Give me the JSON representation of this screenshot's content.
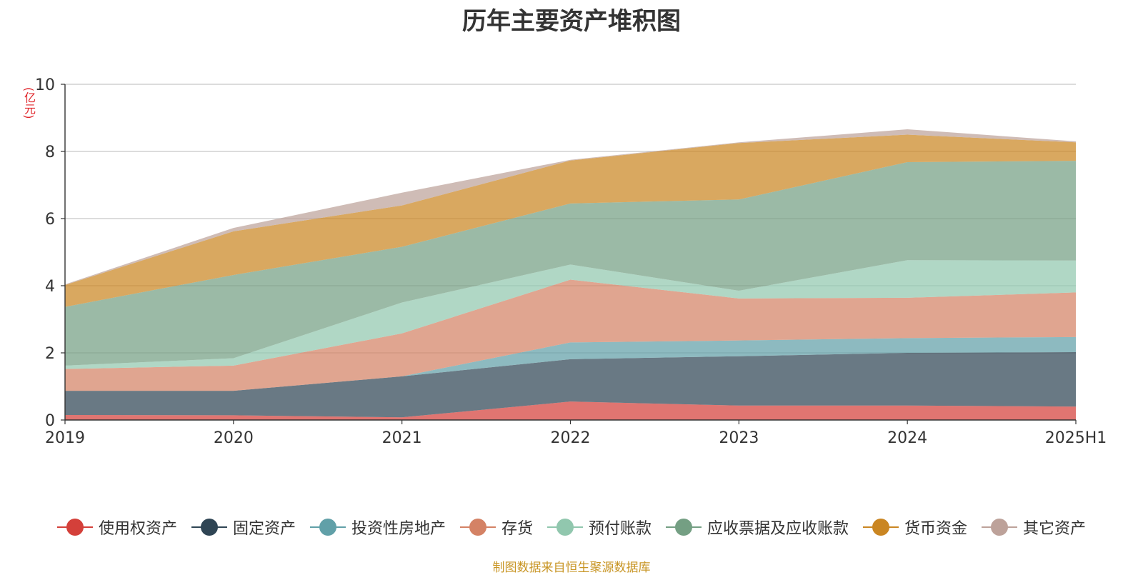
{
  "chart_data": {
    "type": "area",
    "stacked": true,
    "title": "历年主要资产堆积图",
    "unit_label": "(亿元)",
    "categories": [
      "2019",
      "2020",
      "2021",
      "2022",
      "2023",
      "2024",
      "2025H1"
    ],
    "ylim": [
      0,
      10
    ],
    "yticks": [
      0,
      2,
      4,
      6,
      8,
      10
    ],
    "grid": true,
    "legend_position": "bottom",
    "series": [
      {
        "name": "使用权资产",
        "color": "#d4403a",
        "values": [
          0.15,
          0.14,
          0.08,
          0.55,
          0.43,
          0.43,
          0.4
        ]
      },
      {
        "name": "固定资产",
        "color": "#2f4554",
        "values": [
          0.72,
          0.73,
          1.22,
          1.26,
          1.47,
          1.57,
          1.62
        ]
      },
      {
        "name": "投资性房地产",
        "color": "#61a0a8",
        "values": [
          0.0,
          0.0,
          0.0,
          0.5,
          0.47,
          0.44,
          0.45
        ]
      },
      {
        "name": "存货",
        "color": "#d48265",
        "values": [
          0.65,
          0.75,
          1.28,
          1.87,
          1.25,
          1.2,
          1.33
        ]
      },
      {
        "name": "预付账款",
        "color": "#91c7ae",
        "values": [
          0.1,
          0.22,
          0.92,
          0.45,
          0.23,
          1.12,
          0.95
        ]
      },
      {
        "name": "应收票据及应收账款",
        "color": "#749f83",
        "values": [
          1.75,
          2.48,
          1.66,
          1.82,
          2.72,
          2.92,
          2.97
        ]
      },
      {
        "name": "货币资金",
        "color": "#ca8622",
        "values": [
          0.65,
          1.3,
          1.23,
          1.28,
          1.68,
          0.82,
          0.55
        ]
      },
      {
        "name": "其它资产",
        "color": "#bda29a",
        "values": [
          0.02,
          0.1,
          0.38,
          0.02,
          0.02,
          0.16,
          0.03
        ]
      }
    ]
  },
  "source_note": "制图数据来自恒生聚源数据库"
}
